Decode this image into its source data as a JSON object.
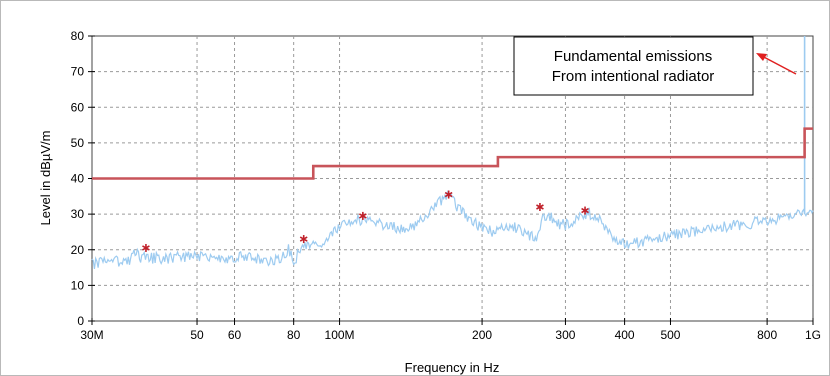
{
  "chart_data": {
    "type": "line",
    "title": "",
    "xlabel": "Frequency in Hz",
    "ylabel": "Level in dBµV/m",
    "x_scale": "log",
    "xlim": [
      30000000,
      1000000000
    ],
    "ylim": [
      0,
      80
    ],
    "grid": true,
    "x_ticks": [
      {
        "value": 30000000,
        "label": "30M"
      },
      {
        "value": 50000000,
        "label": "50"
      },
      {
        "value": 60000000,
        "label": "60"
      },
      {
        "value": 80000000,
        "label": "80"
      },
      {
        "value": 100000000,
        "label": "100M"
      },
      {
        "value": 200000000,
        "label": "200"
      },
      {
        "value": 300000000,
        "label": "300"
      },
      {
        "value": 400000000,
        "label": "400"
      },
      {
        "value": 500000000,
        "label": "500"
      },
      {
        "value": 800000000,
        "label": "800"
      },
      {
        "value": 1000000000,
        "label": "1G"
      }
    ],
    "y_ticks": [
      0,
      10,
      20,
      30,
      40,
      50,
      60,
      70,
      80
    ],
    "series": [
      {
        "kind": "limit",
        "color": "#c8545a",
        "points": [
          [
            30000000,
            40
          ],
          [
            88000000,
            40
          ],
          [
            88000000,
            43.5
          ],
          [
            216000000,
            43.5
          ],
          [
            216000000,
            46
          ],
          [
            960000000,
            46
          ],
          [
            960000000,
            54
          ],
          [
            1000000000,
            54
          ]
        ]
      },
      {
        "kind": "spectrum",
        "color": "#9dcbf0",
        "points": [
          [
            30000000,
            16
          ],
          [
            33000000,
            16.5
          ],
          [
            36000000,
            17
          ],
          [
            37000000,
            19
          ],
          [
            38000000,
            18
          ],
          [
            42000000,
            17.5
          ],
          [
            46000000,
            18
          ],
          [
            50000000,
            18
          ],
          [
            55000000,
            17.5
          ],
          [
            60000000,
            18
          ],
          [
            66000000,
            17.5
          ],
          [
            72000000,
            17
          ],
          [
            76000000,
            18
          ],
          [
            78000000,
            20.5
          ],
          [
            80000000,
            16.5
          ],
          [
            82000000,
            19
          ],
          [
            84000000,
            22
          ],
          [
            86000000,
            21
          ],
          [
            90000000,
            21
          ],
          [
            95000000,
            24
          ],
          [
            100000000,
            27
          ],
          [
            106000000,
            28.5
          ],
          [
            112000000,
            28
          ],
          [
            120000000,
            27.5
          ],
          [
            128000000,
            26.5
          ],
          [
            135000000,
            26
          ],
          [
            142000000,
            26.5
          ],
          [
            150000000,
            29
          ],
          [
            160000000,
            33
          ],
          [
            170000000,
            35
          ],
          [
            180000000,
            31
          ],
          [
            195000000,
            27
          ],
          [
            210000000,
            25
          ],
          [
            225000000,
            27
          ],
          [
            240000000,
            26
          ],
          [
            252000000,
            23.5
          ],
          [
            262000000,
            24
          ],
          [
            270000000,
            30
          ],
          [
            280000000,
            29
          ],
          [
            290000000,
            27
          ],
          [
            305000000,
            27
          ],
          [
            318000000,
            29
          ],
          [
            335000000,
            30.5
          ],
          [
            350000000,
            29
          ],
          [
            365000000,
            26
          ],
          [
            380000000,
            23
          ],
          [
            400000000,
            21.5
          ],
          [
            430000000,
            22
          ],
          [
            460000000,
            23
          ],
          [
            500000000,
            24
          ],
          [
            560000000,
            25
          ],
          [
            620000000,
            26
          ],
          [
            700000000,
            27
          ],
          [
            780000000,
            28
          ],
          [
            850000000,
            29
          ],
          [
            900000000,
            29.5
          ],
          [
            940000000,
            30
          ],
          [
            955000000,
            30.5
          ],
          [
            960000000,
            31
          ],
          [
            985000000,
            31
          ],
          [
            1000000000,
            31
          ]
        ],
        "spike": {
          "x": 960000000,
          "y": 80
        }
      },
      {
        "kind": "peaks",
        "color": "#c0202a",
        "points": [
          [
            39000000,
            20.5
          ],
          [
            84000000,
            23
          ],
          [
            112000000,
            29.5
          ],
          [
            170000000,
            35.5
          ],
          [
            265000000,
            32
          ],
          [
            330000000,
            31
          ]
        ]
      }
    ],
    "annotation": {
      "text_lines": [
        "Fundamental emissions",
        "From intentional radiator"
      ],
      "arrow_color": "#e02020"
    }
  }
}
